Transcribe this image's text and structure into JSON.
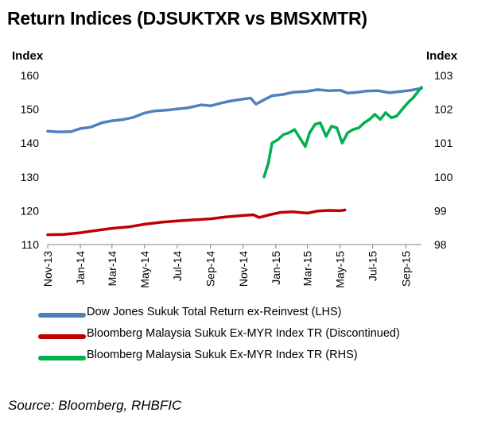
{
  "title": "Return Indices (DJSUKTXR vs BMSXMTR)",
  "source": "Source: Bloomberg, RHBFIC",
  "chart_data": {
    "type": "line",
    "left_axis": {
      "label": "Index",
      "ticks": [
        110,
        120,
        130,
        140,
        150,
        160
      ],
      "range": [
        110,
        160
      ]
    },
    "right_axis": {
      "label": "Index",
      "ticks": [
        98,
        99,
        100,
        101,
        102,
        103
      ],
      "range": [
        98,
        103
      ]
    },
    "x_range": [
      "2013-11-01",
      "2015-09-30"
    ],
    "x_ticks": [
      "Nov-13",
      "Jan-14",
      "Mar-14",
      "May-14",
      "Jul-14",
      "Sep-14",
      "Nov-14",
      "Jan-15",
      "Mar-15",
      "May-15",
      "Jul-15",
      "Sep-15"
    ],
    "x_tick_dates": [
      "2013-11-01",
      "2014-01-01",
      "2014-03-01",
      "2014-05-01",
      "2014-07-01",
      "2014-09-01",
      "2014-11-01",
      "2015-01-01",
      "2015-03-01",
      "2015-05-01",
      "2015-07-01",
      "2015-09-01"
    ],
    "grid": false,
    "legend_position": "bottom",
    "series": [
      {
        "name": "Dow Jones Sukuk Total Return ex-Reinvest (LHS)",
        "axis": "left",
        "color": "#4f81bd",
        "points": [
          [
            "2013-11-01",
            143.5
          ],
          [
            "2013-11-20",
            143.3
          ],
          [
            "2013-12-15",
            143.4
          ],
          [
            "2014-01-01",
            144.3
          ],
          [
            "2014-01-20",
            144.7
          ],
          [
            "2014-02-10",
            146.0
          ],
          [
            "2014-03-01",
            146.6
          ],
          [
            "2014-03-20",
            146.9
          ],
          [
            "2014-04-10",
            147.6
          ],
          [
            "2014-05-01",
            148.9
          ],
          [
            "2014-05-20",
            149.5
          ],
          [
            "2014-06-15",
            149.8
          ],
          [
            "2014-07-01",
            150.1
          ],
          [
            "2014-07-20",
            150.4
          ],
          [
            "2014-08-15",
            151.3
          ],
          [
            "2014-09-01",
            151.0
          ],
          [
            "2014-09-20",
            151.8
          ],
          [
            "2014-10-10",
            152.5
          ],
          [
            "2014-11-01",
            153.0
          ],
          [
            "2014-11-15",
            153.3
          ],
          [
            "2014-11-25",
            151.5
          ],
          [
            "2014-12-10",
            152.8
          ],
          [
            "2014-12-25",
            154.0
          ],
          [
            "2015-01-15",
            154.4
          ],
          [
            "2015-02-01",
            155.0
          ],
          [
            "2015-03-01",
            155.3
          ],
          [
            "2015-03-20",
            155.8
          ],
          [
            "2015-04-10",
            155.5
          ],
          [
            "2015-05-01",
            155.6
          ],
          [
            "2015-05-15",
            154.8
          ],
          [
            "2015-06-01",
            155.0
          ],
          [
            "2015-06-20",
            155.4
          ],
          [
            "2015-07-10",
            155.5
          ],
          [
            "2015-08-01",
            154.9
          ],
          [
            "2015-08-20",
            155.2
          ],
          [
            "2015-09-10",
            155.6
          ],
          [
            "2015-09-30",
            156.2
          ]
        ]
      },
      {
        "name": "Bloomberg Malaysia Sukuk Ex-MYR Index TR (Discontinued)",
        "axis": "left",
        "color": "#c00000",
        "points": [
          [
            "2013-11-01",
            112.9
          ],
          [
            "2013-12-01",
            113.0
          ],
          [
            "2014-01-01",
            113.5
          ],
          [
            "2014-02-01",
            114.2
          ],
          [
            "2014-03-01",
            114.8
          ],
          [
            "2014-04-01",
            115.2
          ],
          [
            "2014-05-01",
            116.0
          ],
          [
            "2014-06-01",
            116.6
          ],
          [
            "2014-07-01",
            117.0
          ],
          [
            "2014-08-01",
            117.3
          ],
          [
            "2014-09-01",
            117.6
          ],
          [
            "2014-10-01",
            118.2
          ],
          [
            "2014-11-01",
            118.6
          ],
          [
            "2014-11-20",
            118.8
          ],
          [
            "2014-12-01",
            118.0
          ],
          [
            "2014-12-20",
            118.8
          ],
          [
            "2015-01-10",
            119.5
          ],
          [
            "2015-02-01",
            119.7
          ],
          [
            "2015-03-01",
            119.3
          ],
          [
            "2015-03-20",
            119.9
          ],
          [
            "2015-04-10",
            120.1
          ],
          [
            "2015-05-01",
            120.0
          ],
          [
            "2015-05-10",
            120.2
          ]
        ]
      },
      {
        "name": "Bloomberg Malaysia Sukuk Ex-MYR Index TR (RHS)",
        "axis": "right",
        "color": "#00b050",
        "points": [
          [
            "2014-12-10",
            100.0
          ],
          [
            "2014-12-18",
            100.4
          ],
          [
            "2014-12-25",
            101.0
          ],
          [
            "2015-01-05",
            101.1
          ],
          [
            "2015-01-15",
            101.25
          ],
          [
            "2015-01-25",
            101.3
          ],
          [
            "2015-02-05",
            101.4
          ],
          [
            "2015-02-15",
            101.15
          ],
          [
            "2015-02-25",
            100.9
          ],
          [
            "2015-03-05",
            101.3
          ],
          [
            "2015-03-15",
            101.55
          ],
          [
            "2015-03-25",
            101.6
          ],
          [
            "2015-04-05",
            101.2
          ],
          [
            "2015-04-15",
            101.5
          ],
          [
            "2015-04-25",
            101.45
          ],
          [
            "2015-05-05",
            101.0
          ],
          [
            "2015-05-15",
            101.3
          ],
          [
            "2015-05-25",
            101.4
          ],
          [
            "2015-06-05",
            101.45
          ],
          [
            "2015-06-15",
            101.6
          ],
          [
            "2015-06-25",
            101.7
          ],
          [
            "2015-07-05",
            101.85
          ],
          [
            "2015-07-15",
            101.7
          ],
          [
            "2015-07-25",
            101.9
          ],
          [
            "2015-08-05",
            101.75
          ],
          [
            "2015-08-15",
            101.8
          ],
          [
            "2015-08-25",
            102.0
          ],
          [
            "2015-09-05",
            102.2
          ],
          [
            "2015-09-15",
            102.35
          ],
          [
            "2015-09-30",
            102.65
          ]
        ]
      }
    ]
  }
}
